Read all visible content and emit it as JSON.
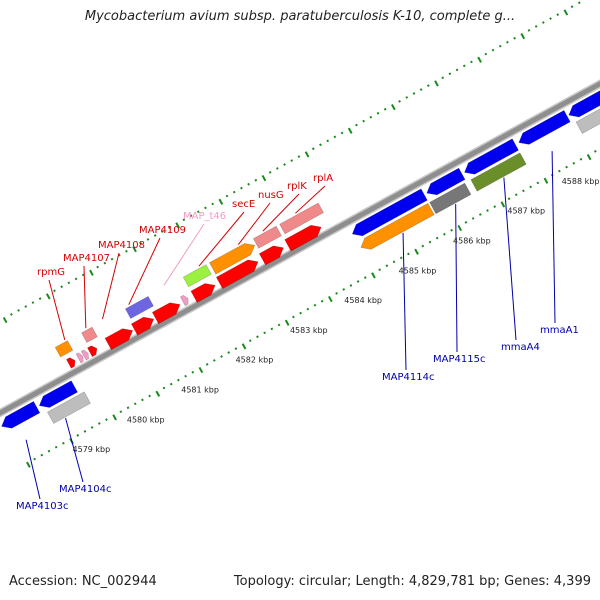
{
  "title": "Mycobacterium avium subsp. paratuberculosis K-10, complete g...",
  "accession": "Accession: NC_002944",
  "summary": "Topology: circular; Length: 4,829,781 bp; Genes: 4,399",
  "scale_labels": [
    "4579 kbp",
    "4580 kbp",
    "4581 kbp",
    "4582 kbp",
    "4583 kbp",
    "4584 kbp",
    "4585 kbp",
    "4586 kbp",
    "4587 kbp",
    "4588 kbp"
  ],
  "genes_top": [
    {
      "name": "rpmG",
      "color": "#d40000"
    },
    {
      "name": "MAP4107",
      "color": "#d40000"
    },
    {
      "name": "MAP4108",
      "color": "#d40000"
    },
    {
      "name": "MAP4109",
      "color": "#d40000"
    },
    {
      "name": "MAP_t46",
      "color": "#f19cc6"
    },
    {
      "name": "secE",
      "color": "#d40000"
    },
    {
      "name": "nusG",
      "color": "#d40000"
    },
    {
      "name": "rplK",
      "color": "#d40000"
    },
    {
      "name": "rplA",
      "color": "#d40000"
    }
  ],
  "genes_bottom": [
    {
      "name": "MAP4103c",
      "color": "#0000a8"
    },
    {
      "name": "MAP4104c",
      "color": "#0000a8"
    },
    {
      "name": "MAP4114c",
      "color": "#0000a8"
    },
    {
      "name": "MAP4115c",
      "color": "#0000a8"
    },
    {
      "name": "mmaA4",
      "color": "#0000a8"
    },
    {
      "name": "mmaA1",
      "color": "#0000a8"
    }
  ],
  "colors": {
    "cds_red": "#ff0000",
    "cds_blue": "#0000ee",
    "rna_pink": "#f19cc6",
    "orange": "#ff9100",
    "lime": "#9cf040",
    "olive": "#6a8f2a",
    "grey": "#bdbdbd",
    "dark_grey": "#777777",
    "purple": "#6e66e0",
    "salmon": "#f08a8a",
    "backbone": "#8e8e8e",
    "tick": "#1a8a1a"
  }
}
